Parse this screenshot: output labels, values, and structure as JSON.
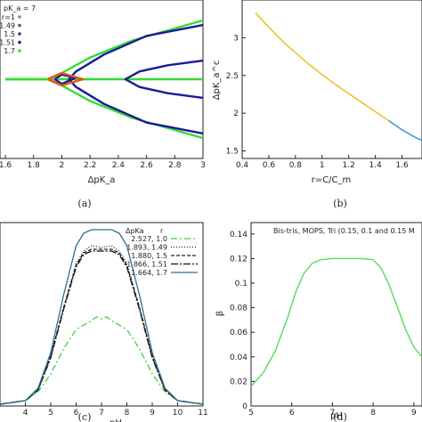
{
  "chart_data": [
    {
      "panel": "a",
      "type": "line",
      "caption": "(a)",
      "xlabel": "ΔpK_a",
      "legend_title": "pK_a = 7",
      "legend_entries": [
        "r=1",
        "1.49",
        "1.5",
        "1.51",
        "1.7"
      ],
      "legend_position": "top-left",
      "xlim": [
        1.6,
        3.0
      ],
      "xticks": [
        "1.6",
        "1.8",
        "2",
        "2.2",
        "2.4",
        "2.6",
        "2.8",
        "3"
      ],
      "colors": {
        "green": "#33dd33",
        "navy": "#1a1a9a",
        "orange": "#e05a10",
        "black": "#000000"
      },
      "curves": [
        {
          "color": "#33dd33",
          "points": [
            [
              1.6,
              0.5
            ],
            [
              1.9,
              0.5
            ],
            [
              2.0,
              0.46
            ],
            [
              2.2,
              0.36
            ],
            [
              2.5,
              0.25
            ],
            [
              3.0,
              0.12
            ]
          ]
        },
        {
          "color": "#33dd33",
          "points": [
            [
              1.6,
              0.5
            ],
            [
              1.9,
              0.5
            ],
            [
              2.0,
              0.54
            ],
            [
              2.2,
              0.64
            ],
            [
              2.5,
              0.75
            ],
            [
              3.0,
              0.88
            ]
          ]
        },
        {
          "color": "#33dd33",
          "points": [
            [
              1.6,
              0.5
            ],
            [
              3.0,
              0.5
            ]
          ]
        },
        {
          "color": "#1a1a9a",
          "points": [
            [
              3.0,
              0.15
            ],
            [
              2.6,
              0.22
            ],
            [
              2.3,
              0.34
            ],
            [
              2.1,
              0.45
            ],
            [
              2.05,
              0.5
            ],
            [
              2.1,
              0.55
            ],
            [
              2.3,
              0.66
            ],
            [
              2.6,
              0.78
            ],
            [
              3.0,
              0.85
            ]
          ]
        },
        {
          "color": "#1a1a9a",
          "points": [
            [
              3.0,
              0.38
            ],
            [
              2.75,
              0.41
            ],
            [
              2.55,
              0.45
            ],
            [
              2.45,
              0.5
            ],
            [
              2.55,
              0.55
            ],
            [
              2.75,
              0.59
            ],
            [
              3.0,
              0.62
            ]
          ]
        },
        {
          "color": "#1a1a9a",
          "points": [
            [
              1.95,
              0.5
            ],
            [
              2.0,
              0.47
            ],
            [
              2.1,
              0.49
            ],
            [
              2.0,
              0.53
            ],
            [
              1.95,
              0.5
            ]
          ]
        },
        {
          "color": "#e05a10",
          "points": [
            [
              1.9,
              0.5
            ],
            [
              2.0,
              0.46
            ],
            [
              2.15,
              0.5
            ],
            [
              2.0,
              0.54
            ],
            [
              1.9,
              0.5
            ]
          ]
        }
      ]
    },
    {
      "panel": "b",
      "type": "line",
      "caption": "(b)",
      "xlabel": "r=C/C_m",
      "ylabel": "ΔpK_a^c",
      "xlim": [
        0.4,
        1.75
      ],
      "ylim": [
        1.4,
        3.5
      ],
      "xticks": [
        "0.4",
        "0.6",
        "0.8",
        "1",
        "1.2",
        "1.4",
        "1.6"
      ],
      "yticks": [
        "1.5",
        "2",
        "2.5",
        "3"
      ],
      "series": [
        {
          "color": "#e8c52a",
          "x": [
            0.5,
            0.6,
            0.7,
            0.8,
            0.9,
            1.0,
            1.1,
            1.2,
            1.3,
            1.4,
            1.5
          ],
          "y": [
            3.33,
            3.14,
            2.96,
            2.8,
            2.65,
            2.51,
            2.38,
            2.26,
            2.14,
            2.02,
            1.9
          ]
        },
        {
          "color": "#3a9ad9",
          "x": [
            1.5,
            1.6,
            1.7,
            1.75
          ],
          "y": [
            1.9,
            1.78,
            1.68,
            1.64
          ]
        }
      ]
    },
    {
      "panel": "c",
      "type": "line",
      "caption": "(c)",
      "xlabel": "pH",
      "xlim": [
        3,
        11
      ],
      "ylim": [
        0,
        1
      ],
      "xticks": [
        "4",
        "5",
        "6",
        "7",
        "8",
        "9",
        "10",
        "11"
      ],
      "legend_title": [
        "ΔpKa",
        "r"
      ],
      "legend_position": "top-right",
      "series": [
        {
          "name": "2.527, 1.0",
          "color": "#44cc44",
          "dash": "7 3 2 3",
          "x": [
            3,
            4,
            4.5,
            5,
            5.5,
            6,
            6.5,
            6.8,
            7,
            7.2,
            7.5,
            8,
            8.5,
            9,
            9.5,
            10,
            11
          ],
          "y": [
            0.01,
            0.03,
            0.08,
            0.18,
            0.32,
            0.43,
            0.47,
            0.5,
            0.49,
            0.5,
            0.47,
            0.43,
            0.32,
            0.18,
            0.08,
            0.03,
            0.01
          ]
        },
        {
          "name": "1.893, 1.49",
          "color": "#222222",
          "dash": "1 2",
          "x": [
            3,
            4,
            4.5,
            5,
            5.5,
            6,
            6.3,
            6.6,
            7,
            7.4,
            7.7,
            8,
            8.5,
            9,
            9.5,
            10,
            11
          ],
          "y": [
            0.01,
            0.03,
            0.09,
            0.28,
            0.55,
            0.8,
            0.87,
            0.9,
            0.89,
            0.9,
            0.87,
            0.8,
            0.55,
            0.28,
            0.09,
            0.03,
            0.01
          ]
        },
        {
          "name": "1.880, 1.5",
          "color": "#222222",
          "dash": "4 2",
          "x": [
            3,
            4,
            4.5,
            5,
            5.5,
            6,
            6.3,
            6.6,
            7,
            7.4,
            7.7,
            8,
            8.5,
            9,
            9.5,
            10,
            11
          ],
          "y": [
            0.01,
            0.03,
            0.09,
            0.28,
            0.55,
            0.79,
            0.86,
            0.88,
            0.88,
            0.88,
            0.86,
            0.79,
            0.55,
            0.28,
            0.09,
            0.03,
            0.01
          ]
        },
        {
          "name": "1.866, 1.51",
          "color": "#111111",
          "dash": "8 2 2 2",
          "x": [
            3,
            4,
            4.5,
            5,
            5.5,
            6,
            6.3,
            6.6,
            7,
            7.4,
            7.7,
            8,
            8.5,
            9,
            9.5,
            10,
            11
          ],
          "y": [
            0.01,
            0.03,
            0.09,
            0.27,
            0.54,
            0.78,
            0.85,
            0.87,
            0.87,
            0.87,
            0.85,
            0.78,
            0.54,
            0.27,
            0.09,
            0.03,
            0.01
          ]
        },
        {
          "name": "1.664, 1.7",
          "color": "#2f6f8f",
          "dash": "",
          "x": [
            3,
            4,
            4.5,
            5,
            5.5,
            6,
            6.3,
            6.6,
            7,
            7.4,
            7.7,
            8,
            8.5,
            9,
            9.5,
            10,
            11
          ],
          "y": [
            0.01,
            0.03,
            0.1,
            0.3,
            0.62,
            0.9,
            0.97,
            0.99,
            0.99,
            0.99,
            0.97,
            0.9,
            0.62,
            0.3,
            0.1,
            0.03,
            0.01
          ]
        }
      ]
    },
    {
      "panel": "d",
      "type": "line",
      "caption": "(d)",
      "xlabel": "pH",
      "ylabel": "β",
      "title": "Bis-tris, MOPS, Tri (0.15, 0.1 and 0.15 M",
      "xlim": [
        5,
        9.2
      ],
      "ylim": [
        0,
        0.15
      ],
      "xticks": [
        "5",
        "6",
        "7",
        "8",
        "9"
      ],
      "yticks": [
        "0",
        "0.02",
        "0.04",
        "0.06",
        "0.08",
        "0.1",
        "0.12",
        "0.14"
      ],
      "series": [
        {
          "color": "#55dd55",
          "x": [
            5.0,
            5.3,
            5.6,
            5.9,
            6.1,
            6.3,
            6.5,
            6.7,
            7.0,
            7.3,
            7.7,
            8.0,
            8.2,
            8.4,
            8.6,
            8.8,
            9.0,
            9.2
          ],
          "y": [
            0.016,
            0.027,
            0.045,
            0.072,
            0.093,
            0.108,
            0.116,
            0.119,
            0.12,
            0.12,
            0.12,
            0.119,
            0.112,
            0.098,
            0.08,
            0.062,
            0.048,
            0.04
          ]
        }
      ]
    }
  ]
}
